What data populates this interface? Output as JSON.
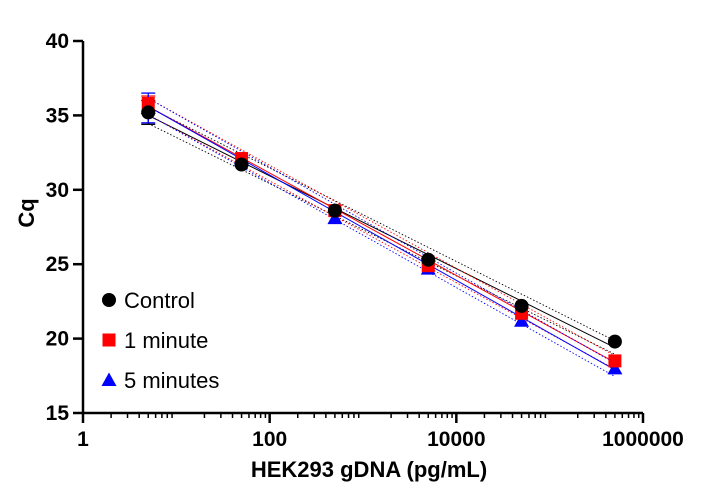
{
  "chart_data": {
    "type": "scatter",
    "title": "",
    "xlabel": "HEK293 gDNA (pg/mL)",
    "ylabel": "Cq",
    "xscale": "log",
    "xlim": [
      1,
      1000000
    ],
    "ylim": [
      15,
      40
    ],
    "x_ticks": [
      1,
      100,
      10000,
      1000000
    ],
    "x_tick_labels": [
      "1",
      "100",
      "10000",
      "1000000"
    ],
    "y_ticks": [
      15,
      20,
      25,
      30,
      35,
      40
    ],
    "y_tick_labels": [
      "15",
      "20",
      "25",
      "30",
      "35",
      "40"
    ],
    "grid": false,
    "legend_position": "bottom-left",
    "x": [
      5,
      50,
      500,
      5000,
      50000,
      500000
    ],
    "series": [
      {
        "name": "Control",
        "marker": "circle",
        "color": "#000000",
        "values": [
          35.2,
          31.7,
          28.6,
          25.3,
          22.2,
          19.8
        ],
        "error": [
          0.8,
          0.2,
          0.2,
          0.2,
          0.2,
          0.1
        ],
        "fit_line": [
          35.0,
          19.4
        ],
        "confidence_band": true
      },
      {
        "name": "1 minute",
        "marker": "square",
        "color": "#ff0000",
        "values": [
          35.8,
          32.1,
          28.6,
          24.9,
          21.7,
          18.5
        ],
        "error": [
          0.5,
          0.2,
          0.2,
          0.2,
          0.2,
          0.1
        ],
        "fit_line": [
          35.6,
          18.4
        ],
        "confidence_band": true
      },
      {
        "name": "5 minutes",
        "marker": "triangle",
        "color": "#0000ff",
        "values": [
          35.5,
          32.0,
          28.1,
          24.7,
          21.2,
          18.0
        ],
        "error": [
          1.0,
          0.2,
          0.2,
          0.2,
          0.2,
          0.1
        ],
        "fit_line": [
          35.6,
          17.9
        ],
        "confidence_band": true
      }
    ]
  }
}
